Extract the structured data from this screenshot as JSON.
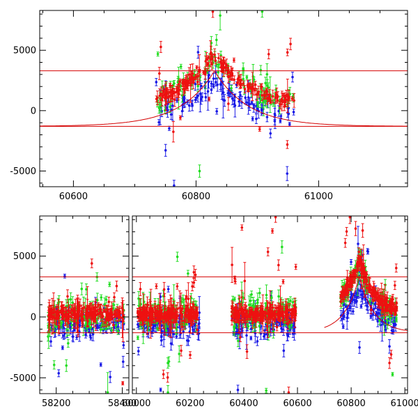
{
  "colors": {
    "frame": "#000000",
    "model": "#d40000",
    "series_red": "#ee1111",
    "series_green": "#22dd22",
    "series_blue": "#1a1ae6"
  },
  "chart_data": [
    {
      "type": "scatter",
      "title": "",
      "xlabel": "",
      "ylabel": "",
      "xlim": [
        60545,
        61145
      ],
      "ylim": [
        -6300,
        8300
      ],
      "x_ticks": [
        "60600",
        "60800",
        "61000"
      ],
      "x_tick_values": [
        60600,
        60800,
        61000
      ],
      "y_ticks": [
        "5000",
        "0",
        "-5000"
      ],
      "y_tick_values": [
        5000,
        0,
        -5000
      ],
      "grid": false,
      "legend": "none",
      "reference_lines": [
        3300,
        -1300
      ],
      "model_curve": {
        "baseline": -1300,
        "peak": 3300,
        "center": 60830,
        "width": 55
      },
      "observed_range": [
        60735,
        60960
      ],
      "series": [
        {
          "color_key": "series_red",
          "scatter": 500
        },
        {
          "color_key": "series_green",
          "scatter": 1100
        },
        {
          "color_key": "series_blue",
          "scatter": 900
        }
      ]
    },
    {
      "type": "scatter",
      "title": "",
      "xlabel": "",
      "ylabel": "",
      "ylim": [
        -6300,
        8300
      ],
      "broken_x_axis": true,
      "segments": [
        {
          "xlim": [
            58150,
            58420
          ],
          "x_ticks": [
            "58200",
            "58400"
          ],
          "x_tick_values": [
            58200,
            58400
          ]
        },
        {
          "xlim": [
            59985,
            61010
          ],
          "x_ticks": [
            "60000",
            "60200",
            "60400",
            "60600",
            "60800",
            "61000"
          ],
          "x_tick_values": [
            60000,
            60200,
            60400,
            60600,
            60800,
            61000
          ]
        }
      ],
      "y_ticks": [
        "5000",
        "0",
        "-5000"
      ],
      "y_tick_values": [
        5000,
        0,
        -5000
      ],
      "grid": false,
      "legend": "none",
      "reference_lines": [
        3300,
        -1300
      ],
      "model_curve": {
        "baseline": -1300,
        "peak": 3300,
        "center": 60830,
        "width": 55,
        "xrange": [
          60700,
          61010
        ]
      },
      "observing_seasons": [
        {
          "range": [
            58175,
            58405
          ],
          "flare": false
        },
        {
          "range": [
            60005,
            60235
          ],
          "flare": false
        },
        {
          "range": [
            60355,
            60595
          ],
          "flare": false
        },
        {
          "range": [
            60760,
            60970
          ],
          "flare": true
        }
      ]
    }
  ]
}
